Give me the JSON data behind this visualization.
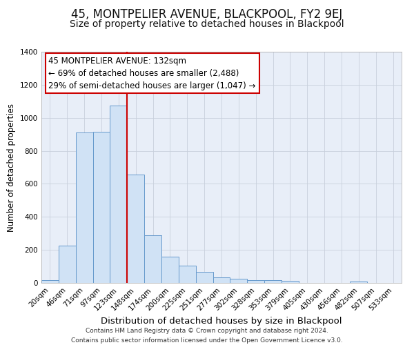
{
  "title": "45, MONTPELIER AVENUE, BLACKPOOL, FY2 9EJ",
  "subtitle": "Size of property relative to detached houses in Blackpool",
  "xlabel": "Distribution of detached houses by size in Blackpool",
  "ylabel": "Number of detached properties",
  "bar_labels": [
    "20sqm",
    "46sqm",
    "71sqm",
    "97sqm",
    "123sqm",
    "148sqm",
    "174sqm",
    "200sqm",
    "225sqm",
    "251sqm",
    "277sqm",
    "302sqm",
    "328sqm",
    "353sqm",
    "379sqm",
    "405sqm",
    "430sqm",
    "456sqm",
    "482sqm",
    "507sqm",
    "533sqm"
  ],
  "bar_heights": [
    15,
    225,
    910,
    915,
    1075,
    655,
    290,
    160,
    105,
    68,
    35,
    25,
    18,
    15,
    12,
    0,
    0,
    0,
    10,
    0,
    0
  ],
  "bar_color": "#d0e2f5",
  "bar_edge_color": "#6699cc",
  "grid_color": "#c8d0dc",
  "background_color": "#e8eef8",
  "vline_color": "#cc0000",
  "annotation_line1": "45 MONTPELIER AVENUE: 132sqm",
  "annotation_line2": "← 69% of detached houses are smaller (2,488)",
  "annotation_line3": "29% of semi-detached houses are larger (1,047) →",
  "annotation_box_facecolor": "#ffffff",
  "annotation_box_edgecolor": "#cc0000",
  "ylim": [
    0,
    1400
  ],
  "yticks": [
    0,
    200,
    400,
    600,
    800,
    1000,
    1200,
    1400
  ],
  "footer_line1": "Contains HM Land Registry data © Crown copyright and database right 2024.",
  "footer_line2": "Contains public sector information licensed under the Open Government Licence v3.0.",
  "title_fontsize": 12,
  "subtitle_fontsize": 10,
  "xlabel_fontsize": 9.5,
  "ylabel_fontsize": 8.5,
  "tick_fontsize": 7.5,
  "annotation_fontsize": 8.5,
  "footer_fontsize": 6.5
}
